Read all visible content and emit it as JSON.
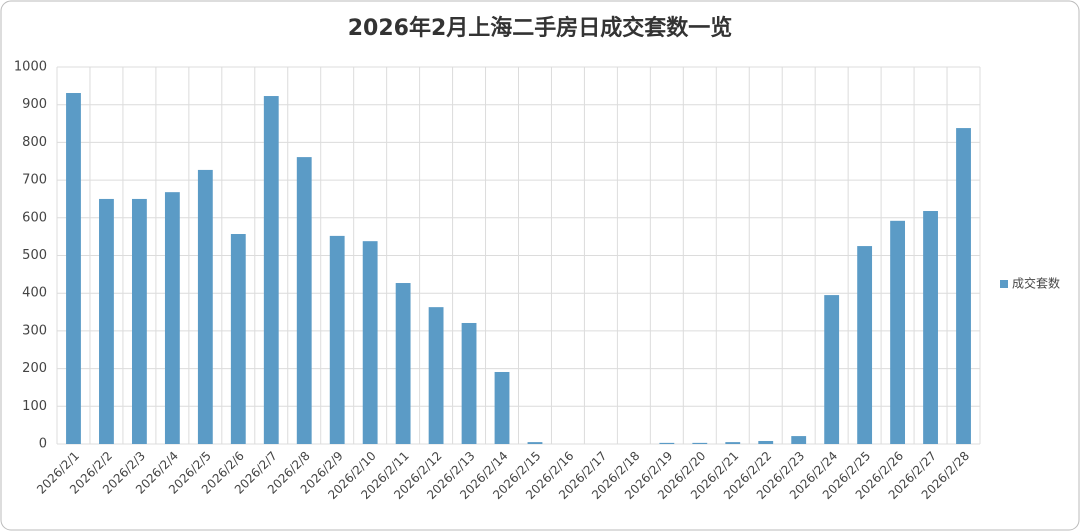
{
  "chart_data": {
    "type": "bar",
    "title": "2026年2月上海二手房日成交套数一览",
    "categories": [
      "2026/2/1",
      "2026/2/2",
      "2026/2/3",
      "2026/2/4",
      "2026/2/5",
      "2026/2/6",
      "2026/2/7",
      "2026/2/8",
      "2026/2/9",
      "2026/2/10",
      "2026/2/11",
      "2026/2/12",
      "2026/2/13",
      "2026/2/14",
      "2026/2/15",
      "2026/2/16",
      "2026/2/17",
      "2026/2/18",
      "2026/2/19",
      "2026/2/20",
      "2026/2/21",
      "2026/2/22",
      "2026/2/23",
      "2026/2/24",
      "2026/2/25",
      "2026/2/26",
      "2026/2/27",
      "2026/2/28"
    ],
    "series": [
      {
        "name": "成交套数",
        "color": "#5b9bc6",
        "values": [
          931,
          650,
          650,
          668,
          727,
          557,
          923,
          761,
          552,
          538,
          427,
          363,
          321,
          191,
          5,
          0,
          0,
          0,
          3,
          3,
          5,
          8,
          21,
          395,
          525,
          592,
          618,
          838
        ]
      }
    ],
    "ylim": [
      0,
      1000
    ],
    "yticks": [
      0,
      100,
      200,
      300,
      400,
      500,
      600,
      700,
      800,
      900,
      1000
    ],
    "grid": true,
    "legend": "right"
  }
}
